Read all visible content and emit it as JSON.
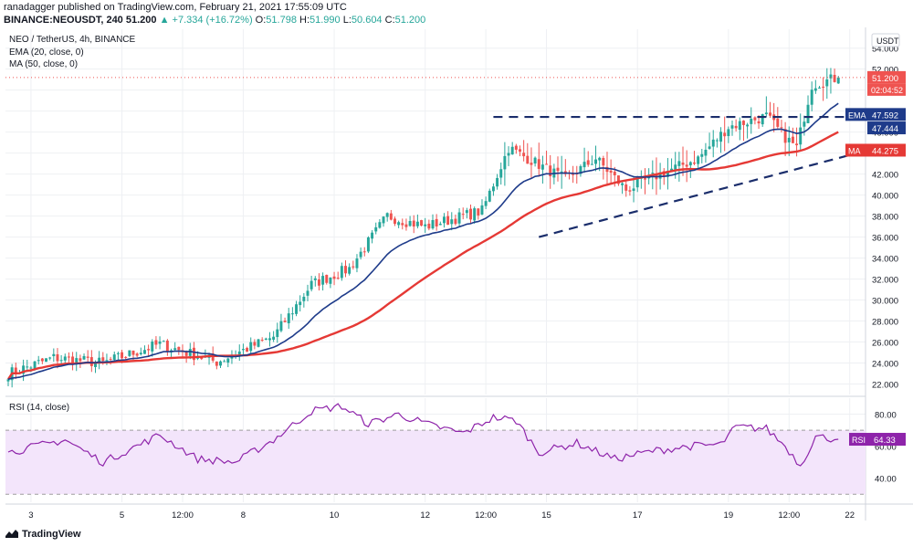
{
  "header": {
    "published": "ranadagger published on TradingView.com, February 21, 2021 17:55:09 UTC",
    "symbol": "BINANCE:NEOUSDT, 240",
    "last": "51.200",
    "change": "▲ +7.334 (+16.72%)",
    "ohlc": {
      "o": "51.798",
      "h": "51.990",
      "l": "50.604",
      "c": "51.200"
    }
  },
  "legend": {
    "title": "NEO / TetherUS, 4h, BINANCE",
    "ema": "EMA (20, close, 0)",
    "ma": "MA (50, close, 0)",
    "rsi": "RSI (14, close)"
  },
  "brand": "TradingView",
  "colors": {
    "up": "#26a69a",
    "down": "#ef5350",
    "ema": "#1e3b8a",
    "ma": "#e53935",
    "rsi": "#8e24aa",
    "rsi_band": "#f3e5fb",
    "trend": "#1a2d6b",
    "grid": "#eef0f3"
  },
  "chart_data": [
    {
      "type": "candlestick",
      "title": "NEO / TetherUS, 4h, BINANCE",
      "currency": "USDT",
      "y_ticks": [
        22,
        24,
        26,
        28,
        30,
        32,
        34,
        36,
        38,
        40,
        42,
        44,
        46,
        48,
        50,
        52,
        54
      ],
      "y_tick_labels": [
        "22.000",
        "24.000",
        "26.000",
        "28.000",
        "30.000",
        "32.000",
        "34.000",
        "36.000",
        "38.000",
        "40.000",
        "42.000",
        "44.000",
        "46.000",
        "48.000",
        "50.000",
        "52.000",
        "54.000"
      ],
      "ylim": [
        21.0,
        55.8
      ],
      "x_labels": [
        "3",
        "5",
        "12:00",
        "8",
        "10",
        "12",
        "12:00",
        "15",
        "17",
        "19",
        "12:00",
        "22"
      ],
      "x_label_index": [
        6,
        30,
        46,
        62,
        86,
        110,
        126,
        142,
        166,
        190,
        206,
        222
      ],
      "candle_count": 220,
      "key_points": [
        {
          "i": 0,
          "close": 23.0
        },
        {
          "i": 12,
          "close": 24.5
        },
        {
          "i": 25,
          "close": 24.0
        },
        {
          "i": 40,
          "close": 25.8
        },
        {
          "i": 55,
          "close": 24.1
        },
        {
          "i": 70,
          "close": 26.5
        },
        {
          "i": 80,
          "close": 31.5
        },
        {
          "i": 90,
          "close": 33.0
        },
        {
          "i": 100,
          "close": 38.0
        },
        {
          "i": 110,
          "close": 37.0
        },
        {
          "i": 125,
          "close": 38.5
        },
        {
          "i": 132,
          "close": 44.5
        },
        {
          "i": 137,
          "close": 43.5
        },
        {
          "i": 147,
          "close": 41.5
        },
        {
          "i": 155,
          "close": 43.5
        },
        {
          "i": 163,
          "close": 40.5
        },
        {
          "i": 172,
          "close": 42.0
        },
        {
          "i": 182,
          "close": 43.5
        },
        {
          "i": 190,
          "close": 46.5
        },
        {
          "i": 200,
          "close": 47.5
        },
        {
          "i": 205,
          "close": 45.5
        },
        {
          "i": 208,
          "close": 44.5
        },
        {
          "i": 212,
          "close": 50.5
        },
        {
          "i": 219,
          "close": 51.2
        }
      ],
      "ema20_last": 47.592,
      "ma50_last": 44.275,
      "resistance_level": 47.444,
      "resistance_line": {
        "from_i": 128,
        "to_i": 222,
        "value": 47.444
      },
      "support_line": {
        "from": [
          140,
          36.0
        ],
        "to": [
          224,
          44.0
        ]
      },
      "price_tag": "51.200",
      "countdown": "02:04:52",
      "ema_label": "EMA",
      "ema_value": "47.592",
      "resistance_value": "47.444",
      "ma_label": "MA",
      "ma_value": "44.275",
      "currency_label": "USDT"
    },
    {
      "type": "line",
      "title": "RSI (14, close)",
      "y_ticks": [
        40,
        60,
        80
      ],
      "y_tick_labels": [
        "40.00",
        "60.00",
        "80.00"
      ],
      "ylim": [
        25,
        90
      ],
      "band": [
        30,
        70
      ],
      "last_label": "RSI",
      "last_value": "64.33",
      "key_points": [
        {
          "i": 0,
          "v": 56
        },
        {
          "i": 15,
          "v": 64
        },
        {
          "i": 25,
          "v": 50
        },
        {
          "i": 40,
          "v": 67
        },
        {
          "i": 50,
          "v": 52
        },
        {
          "i": 60,
          "v": 50
        },
        {
          "i": 70,
          "v": 64
        },
        {
          "i": 80,
          "v": 82
        },
        {
          "i": 88,
          "v": 85
        },
        {
          "i": 95,
          "v": 74
        },
        {
          "i": 103,
          "v": 80
        },
        {
          "i": 110,
          "v": 74
        },
        {
          "i": 120,
          "v": 68
        },
        {
          "i": 128,
          "v": 78
        },
        {
          "i": 134,
          "v": 76
        },
        {
          "i": 140,
          "v": 56
        },
        {
          "i": 150,
          "v": 62
        },
        {
          "i": 160,
          "v": 52
        },
        {
          "i": 170,
          "v": 57
        },
        {
          "i": 180,
          "v": 60
        },
        {
          "i": 188,
          "v": 61
        },
        {
          "i": 192,
          "v": 72
        },
        {
          "i": 200,
          "v": 71
        },
        {
          "i": 205,
          "v": 60
        },
        {
          "i": 209,
          "v": 48
        },
        {
          "i": 213,
          "v": 66
        },
        {
          "i": 219,
          "v": 64.33
        }
      ]
    }
  ]
}
